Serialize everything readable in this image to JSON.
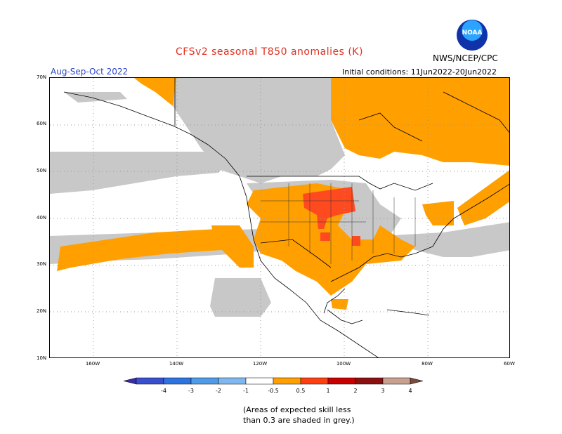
{
  "title": "CFSv2 seasonal T850 anomalies (K)",
  "season": "Aug-Sep-Oct 2022",
  "initial_conditions": "Initial conditions: 11Jun2022-20Jun2022",
  "organization": "NWS/NCEP/CPC",
  "logo_text": "NOAA",
  "lat_labels": [
    "70N",
    "60N",
    "50N",
    "40N",
    "30N",
    "20N",
    "10N"
  ],
  "lon_labels": [
    "160W",
    "140W",
    "120W",
    "100W",
    "80W",
    "60W"
  ],
  "legend": {
    "ticks": [
      "-4",
      "-3",
      "-2",
      "-1",
      "-0.5",
      "0.5",
      "1",
      "2",
      "3",
      "4"
    ],
    "colors": [
      "#3a2ba8",
      "#3a4fd0",
      "#2e74e0",
      "#4f9be8",
      "#7fb8f0",
      "#ffffff",
      "#ff9f00",
      "#ff3f10",
      "#c80000",
      "#8b1010",
      "#c8a090",
      "#7a4a3a"
    ]
  },
  "note_line1": "(Areas of expected skill less",
  "note_line2": "than 0.3 are shaded in grey.)",
  "colors": {
    "warm": "#ff9f00",
    "hot": "#ff4a20",
    "skill_grey": "#c8c8c8"
  }
}
